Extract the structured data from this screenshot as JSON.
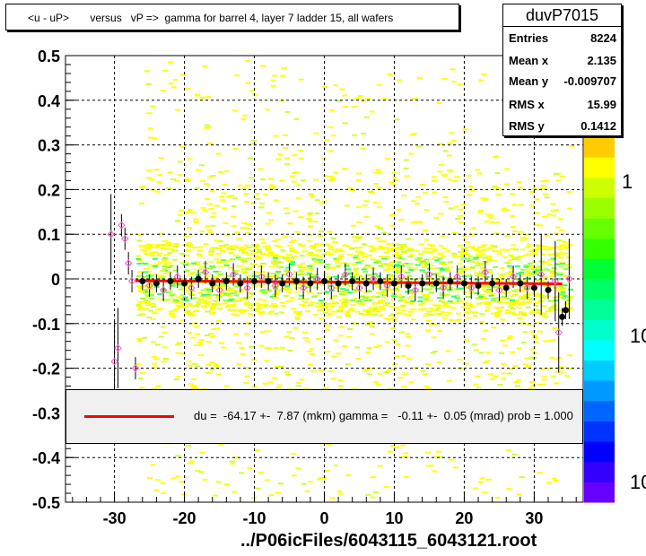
{
  "title": "<u - uP>       versus   vP =>  gamma for barrel 4, layer 7 ladder 15, all wafers",
  "stats": {
    "name": "duvP7015",
    "rows": [
      {
        "key": "Entries",
        "value": "8224"
      },
      {
        "key": "Mean x",
        "value": "2.135"
      },
      {
        "key": "Mean y",
        "value": "-0.009707"
      },
      {
        "key": "RMS x",
        "value": "15.99"
      },
      {
        "key": "RMS y",
        "value": "0.1412"
      }
    ]
  },
  "fit_text": "du =  -64.17 +-  7.87 (mkm) gamma =   -0.11 +-  0.05 (mrad) prob = 1.000",
  "file_label": "../P06icFiles/6043115_6043121.root",
  "colorbar_labels": [
    "1",
    "10",
    "10"
  ],
  "colors": {
    "fit": "#ff0000",
    "profile_marker": "#000000",
    "open_marker": "#ff66cc",
    "dense_cells": "#ffff00"
  },
  "chart_data": {
    "type": "scatter",
    "xlim": [
      -37,
      37
    ],
    "ylim": [
      -0.5,
      0.5
    ],
    "xticks": [
      -30,
      -20,
      -10,
      0,
      10,
      20,
      30
    ],
    "yticks": [
      0.5,
      0.4,
      0.3,
      0.2,
      0.1,
      0,
      -0.1,
      -0.2,
      -0.3,
      -0.4,
      -0.5
    ],
    "x_tick_labels": [
      "-30",
      "-20",
      "-10",
      "0",
      "10",
      "20",
      "30"
    ],
    "y_tick_labels": [
      "0.5",
      "0.4",
      "0.3",
      "0.2",
      "0.1",
      "0",
      "-0.1",
      "-0.2",
      "-0.3",
      "-0.4",
      "-0.5"
    ],
    "grid": true,
    "fit_line": {
      "x": [
        -27,
        34
      ],
      "y": [
        -0.004,
        -0.011
      ]
    },
    "profile_black": [
      {
        "x": -26,
        "y": -0.005
      },
      {
        "x": -24,
        "y": -0.01
      },
      {
        "x": -22,
        "y": -0.005
      },
      {
        "x": -20,
        "y": -0.01
      },
      {
        "x": -18,
        "y": 0.0
      },
      {
        "x": -16,
        "y": -0.01
      },
      {
        "x": -14,
        "y": -0.005
      },
      {
        "x": -12,
        "y": -0.01
      },
      {
        "x": -10,
        "y": -0.005
      },
      {
        "x": -8,
        "y": -0.005
      },
      {
        "x": -6,
        "y": -0.01
      },
      {
        "x": -4,
        "y": -0.005
      },
      {
        "x": -2,
        "y": -0.01
      },
      {
        "x": 0,
        "y": -0.005
      },
      {
        "x": 2,
        "y": -0.01
      },
      {
        "x": 4,
        "y": -0.005
      },
      {
        "x": 6,
        "y": -0.01
      },
      {
        "x": 8,
        "y": -0.005
      },
      {
        "x": 10,
        "y": -0.01
      },
      {
        "x": 12,
        "y": -0.015
      },
      {
        "x": 14,
        "y": -0.01
      },
      {
        "x": 16,
        "y": -0.01
      },
      {
        "x": 18,
        "y": -0.005
      },
      {
        "x": 20,
        "y": -0.01
      },
      {
        "x": 22,
        "y": -0.015
      },
      {
        "x": 24,
        "y": -0.01
      },
      {
        "x": 26,
        "y": -0.02
      },
      {
        "x": 28,
        "y": -0.01
      },
      {
        "x": 30,
        "y": -0.02
      },
      {
        "x": 32,
        "y": -0.025
      },
      {
        "x": 34,
        "y": -0.085
      },
      {
        "x": 34.5,
        "y": -0.07
      }
    ],
    "profile_open": [
      {
        "x": -30.5,
        "y": 0.1
      },
      {
        "x": -29,
        "y": 0.12
      },
      {
        "x": -28.5,
        "y": 0.09
      },
      {
        "x": -28,
        "y": 0.035
      },
      {
        "x": -27.5,
        "y": -0.005
      },
      {
        "x": -30,
        "y": -0.185
      },
      {
        "x": -29.5,
        "y": -0.155
      },
      {
        "x": -27,
        "y": -0.2
      },
      {
        "x": -25,
        "y": -0.015
      },
      {
        "x": -23,
        "y": -0.025
      },
      {
        "x": -21,
        "y": 0.005
      },
      {
        "x": -19,
        "y": -0.02
      },
      {
        "x": -17,
        "y": 0.015
      },
      {
        "x": -15,
        "y": -0.025
      },
      {
        "x": -13,
        "y": 0.01
      },
      {
        "x": -11,
        "y": -0.02
      },
      {
        "x": -9,
        "y": 0.005
      },
      {
        "x": -7,
        "y": -0.015
      },
      {
        "x": -5,
        "y": 0.01
      },
      {
        "x": -3,
        "y": -0.02
      },
      {
        "x": -1,
        "y": 0.0
      },
      {
        "x": 1,
        "y": -0.02
      },
      {
        "x": 3,
        "y": 0.01
      },
      {
        "x": 5,
        "y": -0.02
      },
      {
        "x": 7,
        "y": 0.0
      },
      {
        "x": 9,
        "y": -0.015
      },
      {
        "x": 11,
        "y": 0.005
      },
      {
        "x": 13,
        "y": -0.025
      },
      {
        "x": 15,
        "y": 0.01
      },
      {
        "x": 17,
        "y": -0.02
      },
      {
        "x": 19,
        "y": 0.005
      },
      {
        "x": 21,
        "y": -0.02
      },
      {
        "x": 23,
        "y": 0.015
      },
      {
        "x": 25,
        "y": -0.025
      },
      {
        "x": 27,
        "y": 0.005
      },
      {
        "x": 29,
        "y": -0.02
      },
      {
        "x": 31,
        "y": 0.01
      },
      {
        "x": 33,
        "y": -0.005
      },
      {
        "x": 33.5,
        "y": -0.12
      },
      {
        "x": 35,
        "y": 0.0
      }
    ]
  }
}
